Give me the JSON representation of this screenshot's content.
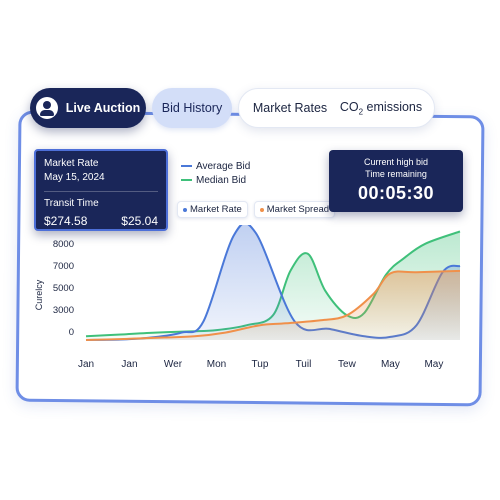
{
  "tabs": {
    "live_auction": "Live Auction",
    "bid_history": "Bid History",
    "market_rates": "Market Rates",
    "co2_prefix": "CO",
    "co2_sub": "2",
    "co2_suffix": " emissions"
  },
  "rate_card": {
    "label": "Market Rate",
    "date": "May 15, 2024",
    "transit_label": "Transit Time",
    "price": "$274.58",
    "spread": "$25.04"
  },
  "legend": {
    "average_bid": "Average Bid",
    "median_bid": "Median Bid",
    "market_rate": "Market Rate",
    "market_spread": "Market Spread"
  },
  "timer": {
    "line1": "Current high bid",
    "line2": "Time remaining",
    "time": "00:05:30"
  },
  "colors": {
    "average_bid": "#4a78d8",
    "median_bid": "#3fc07a",
    "market_spread": "#f0904a",
    "dark": "#1a2659"
  },
  "chart_data": {
    "type": "area",
    "ylabel": "Curelcy",
    "categories": [
      "Jan",
      "Jan",
      "Wer",
      "Mon",
      "Tup",
      "Tuil",
      "Tew",
      "May",
      "May"
    ],
    "y_ticks": [
      "8000",
      "7000",
      "5000",
      "3000",
      "0"
    ],
    "ylim": [
      0,
      9000
    ],
    "series": [
      {
        "name": "Average Bid",
        "color": "#4a78d8",
        "x": [
          0,
          0.8,
          1.5,
          2.2,
          2.7,
          3.4,
          3.9,
          4.8,
          5.6,
          6.4,
          7.0,
          7.6,
          8.2,
          8.6
        ],
        "y": [
          0,
          40,
          200,
          600,
          1500,
          8500,
          8700,
          1500,
          900,
          300,
          250,
          1200,
          5500,
          6000
        ]
      },
      {
        "name": "Median Bid",
        "color": "#3fc07a",
        "x": [
          0,
          0.8,
          1.6,
          2.4,
          3.0,
          3.7,
          4.3,
          4.7,
          5.1,
          5.5,
          6.0,
          6.4,
          6.9,
          7.3,
          7.8,
          8.6
        ],
        "y": [
          300,
          450,
          600,
          700,
          800,
          1200,
          2000,
          5600,
          7000,
          4000,
          2000,
          2200,
          5300,
          6600,
          7800,
          8800
        ]
      },
      {
        "name": "Market Spread",
        "color": "#f0904a",
        "x": [
          0,
          1.0,
          1.8,
          2.5,
          3.2,
          4.0,
          4.6,
          5.4,
          6.0,
          6.6,
          7.0,
          7.6,
          8.6
        ],
        "y": [
          0,
          100,
          200,
          300,
          600,
          1200,
          1350,
          1600,
          2000,
          3700,
          5400,
          5500,
          5600
        ]
      }
    ]
  }
}
